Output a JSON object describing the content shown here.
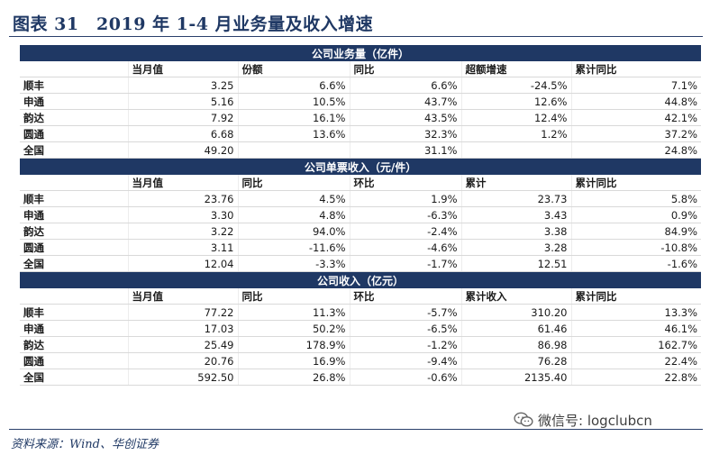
{
  "title": "图表 31　2019 年 1-4 月业务量及收入增速",
  "sections": [
    {
      "heading": "公司业务量（亿件）",
      "columns": [
        "",
        "当月值",
        "份额",
        "同比",
        "超额增速",
        "累计同比"
      ],
      "rows": [
        [
          "顺丰",
          "3.25",
          "6.6%",
          "6.6%",
          "-24.5%",
          "7.1%"
        ],
        [
          "申通",
          "5.16",
          "10.5%",
          "43.7%",
          "12.6%",
          "44.8%"
        ],
        [
          "韵达",
          "7.92",
          "16.1%",
          "43.5%",
          "12.4%",
          "42.1%"
        ],
        [
          "圆通",
          "6.68",
          "13.6%",
          "32.3%",
          "1.2%",
          "37.2%"
        ],
        [
          "全国",
          "49.20",
          "",
          "31.1%",
          "",
          "24.8%"
        ]
      ]
    },
    {
      "heading": "公司单票收入（元/件）",
      "columns": [
        "",
        "当月值",
        "同比",
        "环比",
        "累计",
        "累计同比"
      ],
      "rows": [
        [
          "顺丰",
          "23.76",
          "4.5%",
          "1.9%",
          "23.73",
          "5.8%"
        ],
        [
          "申通",
          "3.30",
          "4.8%",
          "-6.3%",
          "3.43",
          "0.9%"
        ],
        [
          "韵达",
          "3.22",
          "94.0%",
          "-2.4%",
          "3.38",
          "84.9%"
        ],
        [
          "圆通",
          "3.11",
          "-11.6%",
          "-4.6%",
          "3.28",
          "-10.8%"
        ],
        [
          "全国",
          "12.04",
          "-3.3%",
          "-1.7%",
          "12.51",
          "-1.6%"
        ]
      ]
    },
    {
      "heading": "公司收入（亿元）",
      "columns": [
        "",
        "当月值",
        "同比",
        "环比",
        "累计收入",
        "累计同比"
      ],
      "rows": [
        [
          "顺丰",
          "77.22",
          "11.3%",
          "-5.7%",
          "310.20",
          "13.3%"
        ],
        [
          "申通",
          "17.03",
          "50.2%",
          "-6.5%",
          "61.46",
          "46.1%"
        ],
        [
          "韵达",
          "25.49",
          "178.9%",
          "-1.2%",
          "86.98",
          "162.7%"
        ],
        [
          "圆通",
          "20.76",
          "16.9%",
          "-9.4%",
          "76.28",
          "22.4%"
        ],
        [
          "全国",
          "592.50",
          "26.8%",
          "-0.6%",
          "2135.40",
          "22.8%"
        ]
      ]
    }
  ],
  "source": "资料来源：Wind、华创证券",
  "watermark": "微信号: logclubcn"
}
